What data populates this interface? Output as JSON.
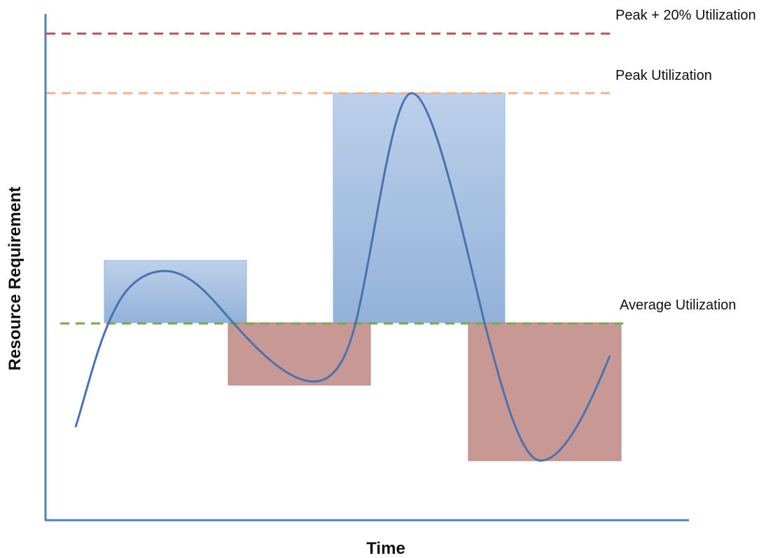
{
  "axes": {
    "x_label": "Time",
    "y_label": "Resource Requirement",
    "axis_color": "#4f81bd"
  },
  "reference_lines": [
    {
      "id": "peak-plus-20",
      "label": "Peak + 20% Utilization",
      "color": "#c0504d"
    },
    {
      "id": "peak",
      "label": "Peak Utilization",
      "color": "#f4b183"
    },
    {
      "id": "average",
      "label": "Average Utilization",
      "color": "#77a845"
    }
  ],
  "regions": {
    "above_average_color": "#a4bde0",
    "below_average_color": "#c08a88"
  },
  "curve": {
    "color": "#4a72b0"
  }
}
